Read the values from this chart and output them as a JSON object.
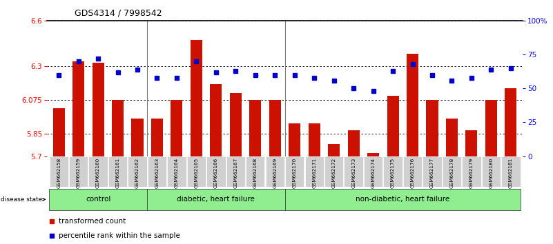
{
  "title": "GDS4314 / 7998542",
  "samples": [
    "GSM662158",
    "GSM662159",
    "GSM662160",
    "GSM662161",
    "GSM662162",
    "GSM662163",
    "GSM662164",
    "GSM662165",
    "GSM662166",
    "GSM662167",
    "GSM662168",
    "GSM662169",
    "GSM662170",
    "GSM662171",
    "GSM662172",
    "GSM662173",
    "GSM662174",
    "GSM662175",
    "GSM662176",
    "GSM662177",
    "GSM662178",
    "GSM662179",
    "GSM662180",
    "GSM662181"
  ],
  "red_values": [
    6.02,
    6.33,
    6.32,
    6.075,
    5.95,
    5.95,
    6.075,
    6.47,
    6.18,
    6.12,
    6.075,
    6.075,
    5.92,
    5.92,
    5.78,
    5.87,
    5.72,
    6.1,
    6.38,
    6.075,
    5.95,
    5.87,
    6.075,
    6.15
  ],
  "blue_values": [
    60,
    70,
    72,
    62,
    64,
    58,
    58,
    70,
    62,
    63,
    60,
    60,
    60,
    58,
    56,
    50,
    48,
    63,
    68,
    60,
    56,
    58,
    64,
    65
  ],
  "ylim_left": [
    5.7,
    6.6
  ],
  "yticks_left": [
    5.7,
    5.85,
    6.075,
    6.3,
    6.6
  ],
  "ylim_right": [
    0,
    100
  ],
  "yticks_right": [
    0,
    25,
    50,
    75,
    100
  ],
  "ytick_labels_right": [
    "0",
    "25",
    "50",
    "75",
    "100%"
  ],
  "bar_color": "#cc1100",
  "dot_color": "#0000cc",
  "group_green": "#90ee90",
  "group_separator": "#888888",
  "groups": [
    {
      "label": "control",
      "start": 0,
      "end": 4
    },
    {
      "label": "diabetic, heart failure",
      "start": 5,
      "end": 11
    },
    {
      "label": "non-diabetic, heart failure",
      "start": 12,
      "end": 23
    }
  ]
}
